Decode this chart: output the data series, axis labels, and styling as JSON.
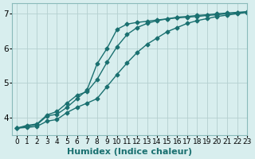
{
  "xlabel": "Humidex (Indice chaleur)",
  "bg_color": "#d8eeee",
  "grid_color": "#b5d0d0",
  "line_color": "#1a7070",
  "xlim": [
    -0.5,
    23
  ],
  "ylim": [
    3.5,
    7.3
  ],
  "yticks": [
    4,
    5,
    6,
    7
  ],
  "xticks": [
    0,
    1,
    2,
    3,
    4,
    5,
    6,
    7,
    8,
    9,
    10,
    11,
    12,
    13,
    14,
    15,
    16,
    17,
    18,
    19,
    20,
    21,
    22,
    23
  ],
  "series": [
    [
      3.7,
      3.75,
      3.8,
      4.05,
      4.1,
      4.3,
      4.55,
      4.8,
      5.55,
      6.0,
      6.55,
      6.7,
      6.75,
      6.78,
      6.82,
      6.85,
      6.88,
      6.9,
      6.92,
      6.95,
      6.97,
      7.0,
      7.02,
      7.05
    ],
    [
      3.7,
      3.78,
      3.82,
      4.08,
      4.18,
      4.42,
      4.65,
      4.75,
      5.1,
      5.6,
      6.05,
      6.4,
      6.6,
      6.72,
      6.8,
      6.85,
      6.9,
      6.92,
      6.95,
      6.97,
      7.0,
      7.02,
      7.04,
      7.06
    ],
    [
      3.7,
      3.72,
      3.75,
      3.9,
      3.95,
      4.15,
      4.3,
      4.42,
      4.55,
      4.9,
      5.25,
      5.58,
      5.88,
      6.12,
      6.3,
      6.48,
      6.6,
      6.72,
      6.8,
      6.86,
      6.92,
      6.96,
      7.0,
      7.04
    ]
  ],
  "marker": "D",
  "markersize": 2.5,
  "linewidth": 1.0,
  "xlabel_fontsize": 8,
  "tick_fontsize": 6.5,
  "ytick_fontsize": 7.5
}
